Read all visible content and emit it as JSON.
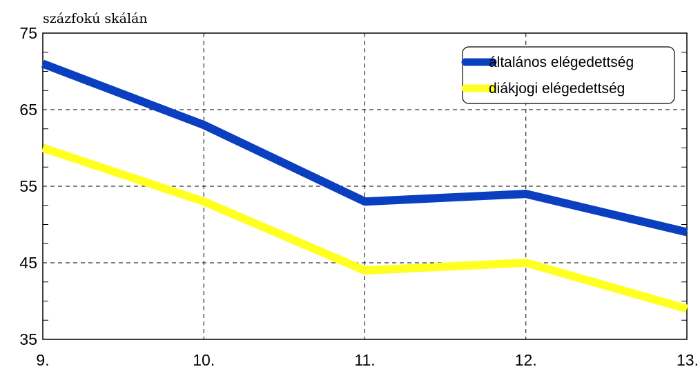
{
  "chart_data": {
    "type": "line",
    "ylabel": "százfokú skálán",
    "categories": [
      "9.",
      "10.",
      "11.",
      "12.",
      "13."
    ],
    "ylim": [
      35,
      75
    ],
    "yticks": [
      35,
      45,
      55,
      65,
      75
    ],
    "grid": true,
    "legend_position": "top-right",
    "series": [
      {
        "name": "általános elégedettség",
        "color": "#0a3fbf",
        "values": [
          71,
          63,
          53,
          54,
          49
        ]
      },
      {
        "name": "diákjogi elégedettség",
        "color": "#ffff22",
        "values": [
          60,
          53,
          44,
          45,
          39
        ]
      }
    ]
  }
}
